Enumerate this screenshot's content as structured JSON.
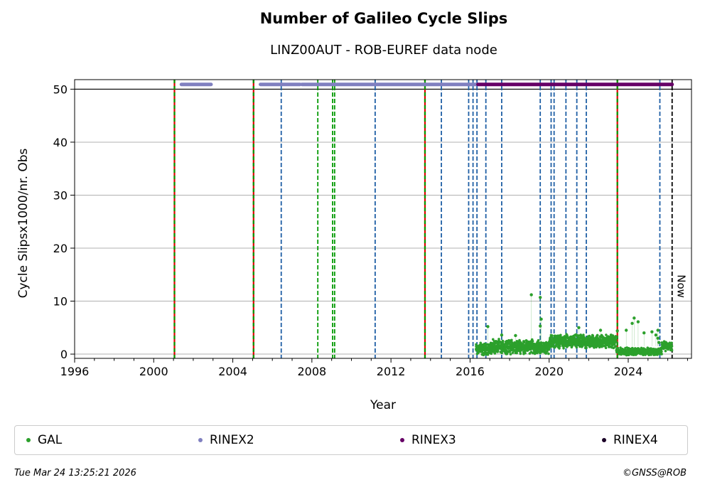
{
  "chart_data": {
    "type": "scatter",
    "title": "Number of Galileo Cycle Slips",
    "subtitle": "LINZ00AUT - ROB-EUREF data node",
    "xlabel": "Year",
    "ylabel": "Cycle Slipsx1000/nr. Obs",
    "xlim": [
      1996,
      2027.2
    ],
    "ylim": [
      -0.8,
      51.8
    ],
    "x_ticks": [
      1996,
      2000,
      2004,
      2008,
      2012,
      2016,
      2020,
      2024
    ],
    "y_ticks": [
      0,
      10,
      20,
      30,
      40,
      50
    ],
    "grid": "horizontal",
    "legend_position": "bottom",
    "series": [
      {
        "name": "GAL",
        "color": "#2ca02c",
        "segments": [
          {
            "x_start": 2016.3,
            "x_end": 2017.0,
            "y_mean": 1.0,
            "y_spread": 1.4
          },
          {
            "x_start": 2017.0,
            "x_end": 2019.5,
            "y_mean": 1.4,
            "y_spread": 1.5
          },
          {
            "x_start": 2019.5,
            "x_end": 2020.0,
            "y_mean": 1.2,
            "y_spread": 1.2
          },
          {
            "x_start": 2020.0,
            "x_end": 2023.4,
            "y_mean": 2.4,
            "y_spread": 1.4
          },
          {
            "x_start": 2023.4,
            "x_end": 2025.7,
            "y_mean": 0.5,
            "y_spread": 0.8
          },
          {
            "x_start": 2025.7,
            "x_end": 2026.22,
            "y_mean": 1.5,
            "y_spread": 1.0
          }
        ],
        "outliers": [
          {
            "x": 2016.9,
            "y": 5.2
          },
          {
            "x": 2017.6,
            "y": 3.6
          },
          {
            "x": 2018.3,
            "y": 3.5
          },
          {
            "x": 2019.1,
            "y": 11.2
          },
          {
            "x": 2019.55,
            "y": 10.7
          },
          {
            "x": 2019.6,
            "y": 6.6
          },
          {
            "x": 2019.55,
            "y": 5.3
          },
          {
            "x": 2021.5,
            "y": 5.0
          },
          {
            "x": 2022.6,
            "y": 4.5
          },
          {
            "x": 2023.45,
            "y": 4.4
          },
          {
            "x": 2023.9,
            "y": 4.5
          },
          {
            "x": 2024.2,
            "y": 5.8
          },
          {
            "x": 2024.3,
            "y": 6.8
          },
          {
            "x": 2024.5,
            "y": 6.1
          },
          {
            "x": 2024.8,
            "y": 4.0
          },
          {
            "x": 2025.2,
            "y": 4.2
          },
          {
            "x": 2025.4,
            "y": 3.6
          },
          {
            "x": 2025.5,
            "y": 4.5
          },
          {
            "x": 2025.5,
            "y": 3.0
          },
          {
            "x": 2025.55,
            "y": 2.2
          }
        ]
      },
      {
        "name": "RINEX2",
        "color": "#8080c0",
        "ranges": [
          [
            2001.4,
            2002.9
          ],
          [
            2005.4,
            2007.4
          ],
          [
            2007.5,
            2016.4
          ]
        ],
        "y": 50.9
      },
      {
        "name": "RINEX3",
        "color": "#660066",
        "ranges": [
          [
            2016.4,
            2026.22
          ]
        ],
        "y": 50.9
      },
      {
        "name": "RINEX4",
        "color": "#1a0026",
        "ranges": [],
        "y": 50.9
      }
    ],
    "reference_line": {
      "y": 50,
      "color": "#000000"
    },
    "vertical_lines": [
      {
        "x": 2001.05,
        "style": "red-green"
      },
      {
        "x": 2005.05,
        "style": "red-green"
      },
      {
        "x": 2013.72,
        "style": "red-green"
      },
      {
        "x": 2023.45,
        "style": "red-green"
      },
      {
        "x": 2006.45,
        "style": "blue-dashed"
      },
      {
        "x": 2011.2,
        "style": "blue-dashed"
      },
      {
        "x": 2014.55,
        "style": "blue-dashed"
      },
      {
        "x": 2015.93,
        "style": "blue-dashed"
      },
      {
        "x": 2016.15,
        "style": "blue-dashed"
      },
      {
        "x": 2016.35,
        "style": "blue-dashed"
      },
      {
        "x": 2016.8,
        "style": "blue-dashed"
      },
      {
        "x": 2017.6,
        "style": "blue-dashed"
      },
      {
        "x": 2019.55,
        "style": "blue-dashed"
      },
      {
        "x": 2020.1,
        "style": "blue-dashed"
      },
      {
        "x": 2020.25,
        "style": "blue-dashed"
      },
      {
        "x": 2020.85,
        "style": "blue-dashed"
      },
      {
        "x": 2021.4,
        "style": "blue-dashed"
      },
      {
        "x": 2021.88,
        "style": "blue-dashed"
      },
      {
        "x": 2025.6,
        "style": "blue-dashed"
      },
      {
        "x": 2008.3,
        "style": "green-dashed"
      },
      {
        "x": 2009.05,
        "style": "green-dashed"
      },
      {
        "x": 2009.15,
        "style": "green-dashed"
      },
      {
        "x": 2026.22,
        "style": "black-dashed",
        "label": "Now"
      }
    ],
    "colors": {
      "red_green_red": "#dd0000",
      "red_green_green": "#009900",
      "blue_dashed": "#1f5fa5",
      "green_dashed": "#009900",
      "black_dashed": "#000000",
      "grid": "#b0b0b0"
    }
  },
  "footer": {
    "timestamp": "Tue Mar 24 13:25:21 2026",
    "copyright": "©GNSS@ROB"
  }
}
